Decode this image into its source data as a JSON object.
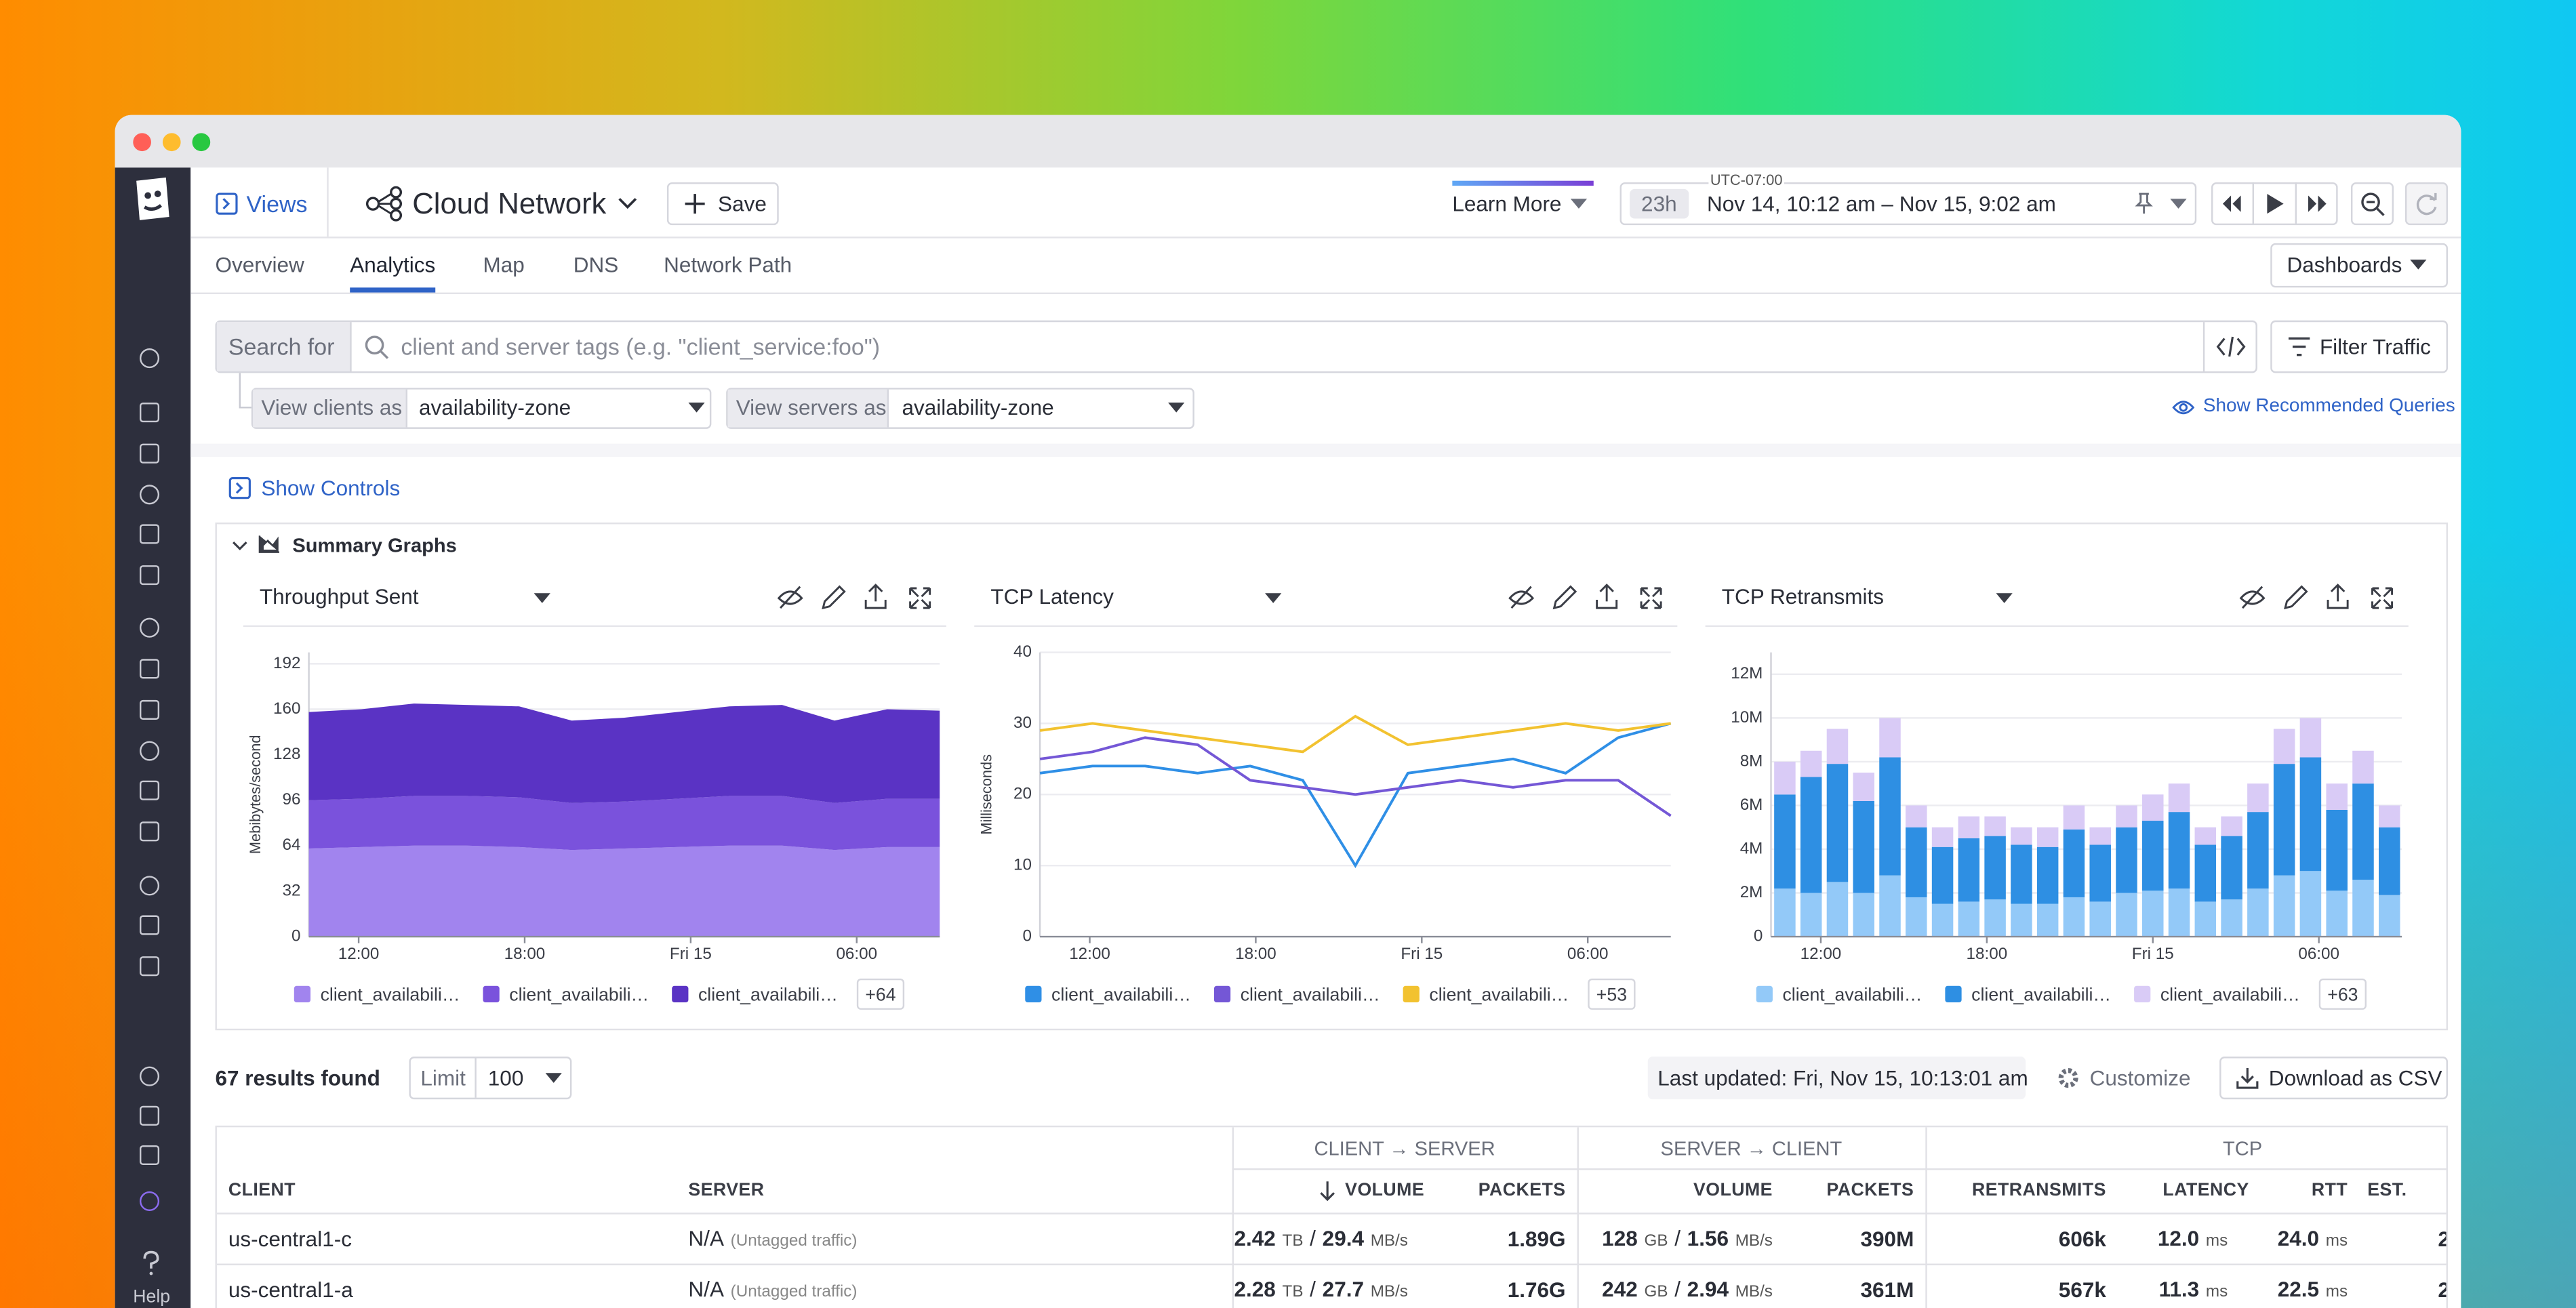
{
  "header": {
    "views": "Views",
    "title": "Cloud Network",
    "save": "Save",
    "learn_more": "Learn More",
    "timezone": "UTC-07:00",
    "time_badge": "23h",
    "time_range": "Nov 14, 10:12 am – Nov 15, 9:02 am",
    "dashboards": "Dashboards"
  },
  "tabs": [
    "Overview",
    "Analytics",
    "Map",
    "DNS",
    "Network Path"
  ],
  "active_tab": 1,
  "search": {
    "label": "Search for",
    "placeholder": "client and server tags (e.g. \"client_service:foo\")",
    "filter": "Filter Traffic"
  },
  "grouping": {
    "clients_label": "View clients as",
    "clients_value": "availability-zone",
    "servers_label": "View servers as",
    "servers_value": "availability-zone",
    "recommended": "Show Recommended Queries"
  },
  "controls": "Show Controls",
  "section": "Summary Graphs",
  "graphs": [
    {
      "type": "area",
      "title": "Throughput Sent",
      "y_label": "Mebibytes/second",
      "xlim": [
        0,
        22.8
      ],
      "xticks": [
        {
          "value": 1.8,
          "label": "12:00"
        },
        {
          "value": 7.8,
          "label": "18:00"
        },
        {
          "value": 13.8,
          "label": "Fri 15"
        },
        {
          "value": 19.8,
          "label": "06:00"
        }
      ],
      "ylim": [
        0,
        200
      ],
      "yticks": [
        0,
        32,
        64,
        96,
        128,
        160,
        192
      ],
      "x": [
        0,
        1.9,
        3.8,
        5.7,
        7.6,
        9.5,
        11.4,
        13.3,
        15.2,
        17.1,
        19,
        20.9,
        22.8
      ],
      "series": [
        {
          "name": "client_availabili…",
          "color": "#a184ee",
          "values": [
            62,
            63,
            64,
            64,
            63,
            61,
            62,
            63,
            64,
            64,
            61,
            63,
            63
          ]
        },
        {
          "name": "client_availabili…",
          "color": "#7a52dc",
          "values": [
            34,
            34,
            35,
            35,
            35,
            33,
            33,
            34,
            35,
            35,
            33,
            34,
            34
          ]
        },
        {
          "name": "client_availabili…",
          "color": "#5a33c4",
          "values": [
            62,
            63,
            65,
            64,
            64,
            58,
            59,
            61,
            63,
            64,
            58,
            63,
            62
          ]
        }
      ],
      "more": "+64"
    },
    {
      "type": "line",
      "title": "TCP Latency",
      "y_label": "Milliseconds",
      "xlim": [
        0,
        22.8
      ],
      "xticks": [
        {
          "value": 1.8,
          "label": "12:00"
        },
        {
          "value": 7.8,
          "label": "18:00"
        },
        {
          "value": 13.8,
          "label": "Fri 15"
        },
        {
          "value": 19.8,
          "label": "06:00"
        }
      ],
      "ylim": [
        0,
        40
      ],
      "yticks": [
        0,
        10,
        20,
        30,
        40
      ],
      "x": [
        0,
        1.9,
        3.8,
        5.7,
        7.6,
        9.5,
        11.4,
        13.3,
        15.2,
        17.1,
        19,
        20.9,
        22.8
      ],
      "series": [
        {
          "name": "client_availabili…",
          "color": "#2f8fe6",
          "values": [
            23,
            24,
            24,
            23,
            24,
            22,
            10,
            23,
            24,
            25,
            23,
            28,
            30
          ]
        },
        {
          "name": "client_availabili…",
          "color": "#7457d6",
          "values": [
            25,
            26,
            28,
            27,
            22,
            21,
            20,
            21,
            22,
            21,
            22,
            22,
            17
          ]
        },
        {
          "name": "client_availabili…",
          "color": "#f2c230",
          "values": [
            29,
            30,
            29,
            28,
            27,
            26,
            31,
            27,
            28,
            29,
            30,
            29,
            30
          ]
        }
      ],
      "more": "+53"
    },
    {
      "type": "bar",
      "title": "TCP Retransmits",
      "xlim": [
        0,
        22.8
      ],
      "xticks": [
        {
          "value": 1.8,
          "label": "12:00"
        },
        {
          "value": 7.8,
          "label": "18:00"
        },
        {
          "value": 13.8,
          "label": "Fri 15"
        },
        {
          "value": 19.8,
          "label": "06:00"
        }
      ],
      "ylim": [
        0,
        13000000
      ],
      "yticks": [
        0,
        {
          "value": 2000000,
          "label": "2M"
        },
        {
          "value": 4000000,
          "label": "4M"
        },
        {
          "value": 6000000,
          "label": "6M"
        },
        {
          "value": 8000000,
          "label": "8M"
        },
        {
          "value": 10000000,
          "label": "10M"
        },
        {
          "value": 12000000,
          "label": "12M"
        }
      ],
      "x": [
        0.5,
        1.45,
        2.4,
        3.35,
        4.3,
        5.25,
        6.2,
        7.15,
        8.1,
        9.05,
        10,
        10.95,
        11.9,
        12.85,
        13.8,
        14.75,
        15.7,
        16.65,
        17.6,
        18.55,
        19.5,
        20.45,
        21.4,
        22.35
      ],
      "series": [
        {
          "name": "client_availabili…",
          "color": "#93c9f8",
          "values": [
            2200000,
            2000000,
            2500000,
            2000000,
            2800000,
            1800000,
            1500000,
            1600000,
            1700000,
            1500000,
            1500000,
            1800000,
            1600000,
            2000000,
            2100000,
            2200000,
            1600000,
            1700000,
            2200000,
            2800000,
            3000000,
            2100000,
            2600000,
            1900000
          ]
        },
        {
          "name": "client_availabili…",
          "color": "#2e8fe3",
          "values": [
            4300000,
            5300000,
            5400000,
            4200000,
            5400000,
            3200000,
            2600000,
            2900000,
            2900000,
            2700000,
            2600000,
            3100000,
            2600000,
            3000000,
            3200000,
            3500000,
            2600000,
            2900000,
            3500000,
            5100000,
            5200000,
            3700000,
            4400000,
            3100000
          ]
        },
        {
          "name": "client_availabili…",
          "color": "#d9cbf6",
          "values": [
            1500000,
            1200000,
            1600000,
            1300000,
            1800000,
            1000000,
            900000,
            1000000,
            900000,
            800000,
            900000,
            1100000,
            800000,
            1000000,
            1200000,
            1300000,
            800000,
            900000,
            1300000,
            1600000,
            1800000,
            1200000,
            1500000,
            1000000
          ]
        }
      ],
      "more": "+63"
    }
  ],
  "results": {
    "count": "67 results found",
    "limit_label": "Limit",
    "limit": 100,
    "last_updated": "Last updated: Fri, Nov 15, 10:13:01 am",
    "customize": "Customize",
    "download": "Download as CSV"
  },
  "table": {
    "groups": [
      "CLIENT → SERVER",
      "SERVER → CLIENT",
      "TCP"
    ],
    "columns": [
      "CLIENT",
      "SERVER",
      "VOLUME",
      "PACKETS",
      "VOLUME",
      "PACKETS",
      "RETRANSMITS",
      "LATENCY",
      "RTT",
      "EST."
    ],
    "rows": [
      [
        "us-central1-c",
        [
          "N/A",
          "(Untagged traffic)"
        ],
        [
          "2.42",
          "TB",
          "/",
          "29.4",
          "MB/s"
        ],
        "1.89G",
        [
          "128",
          "GB",
          "/",
          "1.56",
          "MB/s"
        ],
        "390M",
        "606k",
        [
          "12.0",
          "ms"
        ],
        [
          "24.0",
          "ms"
        ],
        "2"
      ],
      [
        "us-central1-a",
        [
          "N/A",
          "(Untagged traffic)"
        ],
        [
          "2.28",
          "TB",
          "/",
          "27.7",
          "MB/s"
        ],
        "1.76G",
        [
          "242",
          "GB",
          "/",
          "2.94",
          "MB/s"
        ],
        "361M",
        "567k",
        [
          "11.3",
          "ms"
        ],
        [
          "22.5",
          "ms"
        ],
        "2"
      ]
    ]
  },
  "sidebar": {
    "help": "Help"
  }
}
